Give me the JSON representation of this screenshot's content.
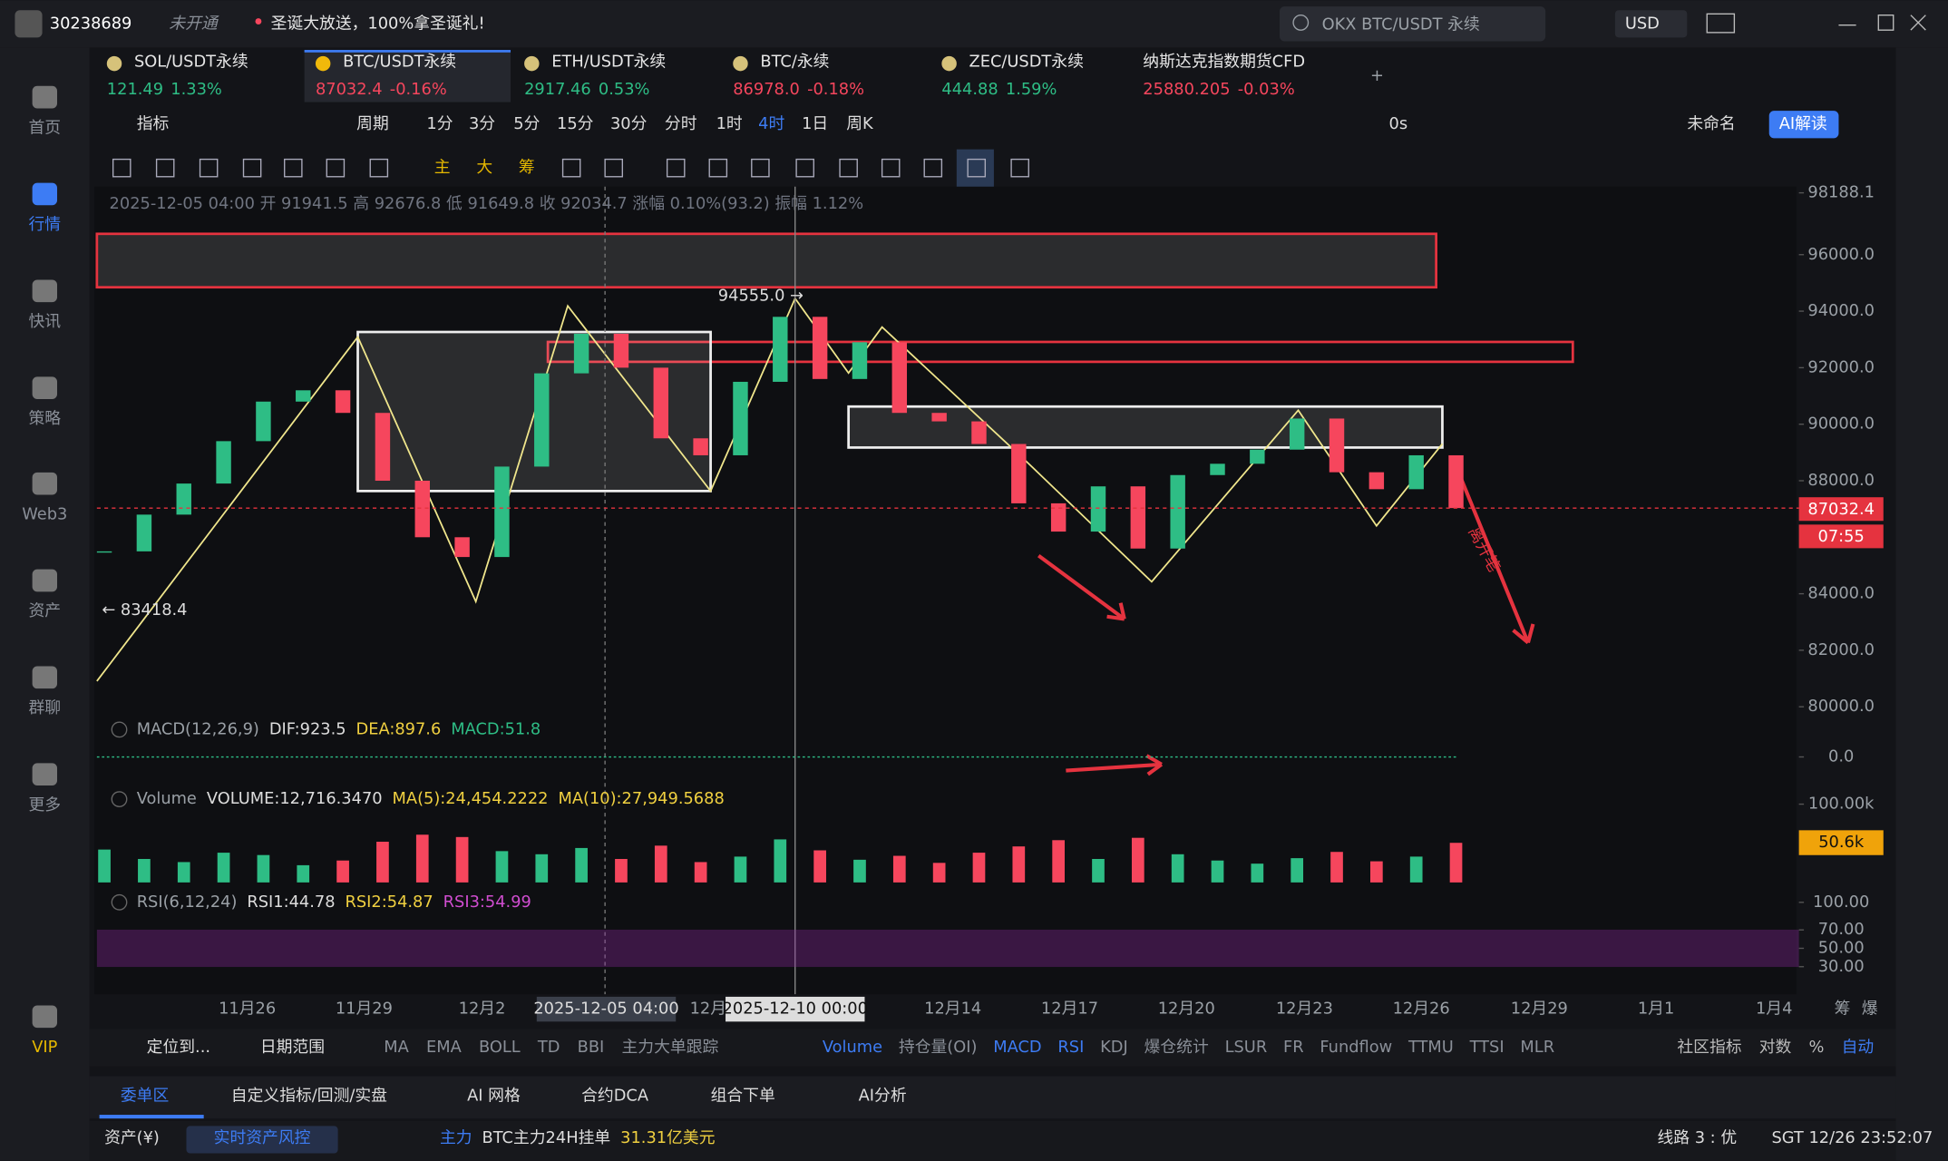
{
  "header": {
    "user_id": "30238689",
    "status": "未开通",
    "promo": "圣诞大放送，100%拿圣诞礼!",
    "search": "OKX BTC/USDT 永续",
    "currency": "USD"
  },
  "sidebar": [
    "首页",
    "行情",
    "快讯",
    "策略",
    "Web3",
    "资产",
    "群聊",
    "更多",
    "VIP"
  ],
  "tickers": [
    {
      "name": "SOL/USDT永续",
      "price": "121.49",
      "change": "1.33%"
    },
    {
      "name": "BTC/USDT永续",
      "price": "87032.4",
      "change": "-0.16%"
    },
    {
      "name": "ETH/USDT永续",
      "price": "2917.46",
      "change": "0.53%"
    },
    {
      "name": "BTC/永续",
      "price": "86978.0",
      "change": "-0.18%"
    },
    {
      "name": "ZEC/USDT永续",
      "price": "444.88",
      "change": "1.59%"
    },
    {
      "name": "纳斯达克指数期货CFD",
      "price": "25880.205",
      "change": "-0.03%"
    }
  ],
  "toolbar": {
    "indicator": "指标",
    "period": "周期",
    "intervals": [
      "1分",
      "3分",
      "5分",
      "15分",
      "30分",
      "分时",
      "1时",
      "4时",
      "1日",
      "周K"
    ],
    "active": 7,
    "timer": "0s",
    "layout": "未命名",
    "ai": "AI解读"
  },
  "draw_tools": [
    "主",
    "大",
    "筹"
  ],
  "chart_data": [
    {
      "type": "candlestick",
      "info": "2025-12-05 04:00 开 91941.5 高 92676.8 低 91649.8 收 92034.7 涨幅 0.10%(93.2) 振幅 1.12%",
      "closes": [
        85500,
        86800,
        87900,
        89400,
        90800,
        91200,
        90400,
        88000,
        86000,
        85300,
        88500,
        91800,
        93200,
        92000,
        89500,
        88900,
        91500,
        93800,
        91600,
        92900,
        90400,
        90100,
        89300,
        87200,
        86200,
        87800,
        85600,
        88200,
        88600,
        89100,
        90200,
        88300,
        87700,
        88900,
        87032.4
      ],
      "ylim": [
        79500,
        98188.1
      ],
      "yticks": [
        98188.1,
        {
          "value": 96000,
          "label": "96000.0"
        },
        {
          "value": 94000,
          "label": "94000.0"
        },
        {
          "value": 92000,
          "label": "92000.0"
        },
        {
          "value": 90000,
          "label": "90000.0"
        },
        {
          "value": 88000,
          "label": "88000.0"
        },
        {
          "value": 84000,
          "label": "84000.0"
        },
        {
          "value": 82000,
          "label": "82000.0"
        },
        {
          "value": 80000,
          "label": "80000.0"
        }
      ],
      "last_price": 87032.4,
      "countdown": "07:55",
      "high_label": "94555.0 →",
      "low_label": "← 83418.4",
      "note": "离开笔",
      "x_labels": [
        "11月26",
        "11月29",
        "12月2",
        "2025-12-05 04:00",
        "12月",
        "2025-12-10 00:00",
        "12月14",
        "12月17",
        "12月20",
        "12月23",
        "12月26",
        "12月29",
        "1月1",
        "1月4",
        "筹",
        "爆"
      ]
    },
    {
      "type": "line",
      "name": "MACD(12,26,9)",
      "info": [
        "DIF:923.5",
        "DEA:897.6",
        "MACD:51.8"
      ],
      "ylim": [
        -1500,
        1500
      ],
      "yticks": [
        {
          "value": 0,
          "label": "0.0"
        }
      ]
    },
    {
      "type": "bar",
      "name": "Volume",
      "info": [
        "VOLUME:12,716.3470",
        "MA(5):24,454.2222",
        "MA(10):27,949.5688"
      ],
      "values": [
        42000,
        30000,
        26000,
        38000,
        35000,
        22000,
        28000,
        52000,
        61000,
        58000,
        40000,
        36000,
        44000,
        30000,
        47000,
        26000,
        33000,
        55000,
        41000,
        29000,
        34000,
        25000,
        38000,
        46000,
        54000,
        30000,
        57000,
        36000,
        28000,
        24000,
        31000,
        39000,
        27000,
        33000,
        50600
      ],
      "value_labels": {
        "34": "50.6k"
      },
      "ylim": [
        0,
        100000
      ],
      "yticks": [
        {
          "value": 100000,
          "label": "100.00k"
        }
      ]
    },
    {
      "type": "line",
      "name": "RSI(6,12,24)",
      "info": [
        "RSI1:44.78",
        "RSI2:54.87",
        "RSI3:54.99"
      ],
      "ylim": [
        0,
        100
      ],
      "yticks": [
        {
          "value": 100,
          "label": "100.00"
        },
        {
          "value": 70,
          "label": "70.00"
        },
        {
          "value": 50,
          "label": "50.00"
        },
        {
          "value": 30,
          "label": "30.00"
        }
      ]
    }
  ],
  "indicator_bar": {
    "locate": "定位到...",
    "range": "日期范围",
    "main": [
      "MA",
      "EMA",
      "BOLL",
      "TD",
      "BBI",
      "主力大单跟踪"
    ],
    "sub": [
      "Volume",
      "持仓量(OI)",
      "MACD",
      "RSI",
      "KDJ",
      "爆仓统计",
      "LSUR",
      "FR",
      "Fundflow",
      "TTMU",
      "TTSI",
      "MLR"
    ],
    "right": [
      "社区指标",
      "对数",
      "%",
      "自动"
    ]
  },
  "panel_tabs": [
    "委单区",
    "自定义指标/回测/实盘",
    "AI 网格",
    "合约DCA",
    "组合下单",
    "AI分析"
  ],
  "status": {
    "assets": "资产(¥)",
    "risk": "实时资产风控",
    "main": "主力",
    "orders": "BTC主力24H挂单",
    "orders_value": "31.31亿美元",
    "line": "线路 3 : 优",
    "time": "SGT 12/26 23:52:07"
  }
}
